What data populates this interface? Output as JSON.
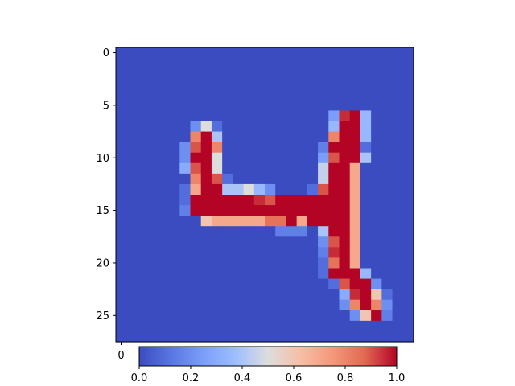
{
  "chart_data": {
    "type": "heatmap",
    "title": "",
    "colormap": "coolwarm",
    "colors": {
      "low": "#3b4cc0",
      "mid": "#dddddd",
      "high": "#b40426"
    },
    "y_ticks": [
      "0",
      "5",
      "10",
      "15",
      "20",
      "25"
    ],
    "x_ticks_visible": [
      "0"
    ],
    "colorbar_ticks": [
      "0.0",
      "0.2",
      "0.4",
      "0.6",
      "0.8",
      "1.0"
    ],
    "colorbar_range": [
      0,
      1
    ],
    "rows": 28,
    "cols": 28,
    "values": [
      [
        0,
        0,
        0,
        0,
        0,
        0,
        0,
        0,
        0,
        0,
        0,
        0,
        0,
        0,
        0,
        0,
        0,
        0,
        0,
        0,
        0,
        0,
        0,
        0,
        0,
        0,
        0,
        0
      ],
      [
        0,
        0,
        0,
        0,
        0,
        0,
        0,
        0,
        0,
        0,
        0,
        0,
        0,
        0,
        0,
        0,
        0,
        0,
        0,
        0,
        0,
        0,
        0,
        0,
        0,
        0,
        0,
        0
      ],
      [
        0,
        0,
        0,
        0,
        0,
        0,
        0,
        0,
        0,
        0,
        0,
        0,
        0,
        0,
        0,
        0,
        0,
        0,
        0,
        0,
        0,
        0,
        0,
        0,
        0,
        0,
        0,
        0
      ],
      [
        0,
        0,
        0,
        0,
        0,
        0,
        0,
        0,
        0,
        0,
        0,
        0,
        0,
        0,
        0,
        0,
        0,
        0,
        0,
        0,
        0,
        0,
        0,
        0,
        0,
        0,
        0,
        0
      ],
      [
        0,
        0,
        0,
        0,
        0,
        0,
        0,
        0,
        0,
        0,
        0,
        0,
        0,
        0,
        0,
        0,
        0,
        0,
        0,
        0,
        0,
        0,
        0,
        0,
        0,
        0,
        0,
        0
      ],
      [
        0,
        0,
        0,
        0,
        0,
        0,
        0,
        0,
        0,
        0,
        0,
        0,
        0,
        0,
        0,
        0,
        0,
        0,
        0,
        0,
        0,
        0,
        0,
        0,
        0,
        0,
        0,
        0
      ],
      [
        0,
        0,
        0,
        0,
        0,
        0,
        0,
        0,
        0,
        0,
        0,
        0,
        0,
        0,
        0,
        0,
        0,
        0,
        0,
        0,
        0.25,
        0.95,
        1,
        0.35,
        0,
        0,
        0,
        0
      ],
      [
        0,
        0,
        0,
        0,
        0,
        0,
        0,
        0.2,
        0.5,
        0.1,
        0,
        0,
        0,
        0,
        0,
        0,
        0,
        0,
        0,
        0,
        0.35,
        1,
        1,
        0.35,
        0,
        0,
        0,
        0
      ],
      [
        0,
        0,
        0,
        0,
        0,
        0,
        0,
        0.8,
        1,
        0.4,
        0,
        0,
        0,
        0,
        0,
        0,
        0,
        0,
        0,
        0,
        0.8,
        1,
        1,
        0.35,
        0,
        0,
        0,
        0
      ],
      [
        0,
        0,
        0,
        0,
        0,
        0,
        0.2,
        0.9,
        1,
        0.8,
        0,
        0,
        0,
        0,
        0,
        0,
        0,
        0,
        0,
        0.15,
        1,
        1,
        1,
        0.1,
        0,
        0,
        0,
        0
      ],
      [
        0,
        0,
        0,
        0,
        0,
        0,
        0.2,
        1,
        1,
        0.5,
        0,
        0,
        0,
        0,
        0,
        0,
        0,
        0,
        0,
        0.25,
        0.9,
        1,
        1,
        0.4,
        0,
        0,
        0,
        0
      ],
      [
        0,
        0,
        0,
        0,
        0,
        0,
        0.3,
        0.9,
        1,
        0.5,
        0,
        0,
        0,
        0,
        0,
        0,
        0,
        0,
        0,
        0.45,
        1,
        1,
        0.7,
        0,
        0,
        0,
        0,
        0
      ],
      [
        0,
        0,
        0,
        0,
        0,
        0,
        0,
        0.8,
        1,
        0.9,
        0.1,
        0,
        0,
        0,
        0,
        0,
        0,
        0,
        0,
        0.45,
        1,
        1,
        0.7,
        0,
        0,
        0,
        0,
        0
      ],
      [
        0,
        0,
        0,
        0,
        0,
        0,
        0.1,
        0.7,
        1,
        1,
        0.4,
        0.4,
        0.5,
        0.35,
        0.2,
        0,
        0,
        0,
        0.1,
        0.9,
        1,
        1,
        0.7,
        0,
        0,
        0,
        0,
        0
      ],
      [
        0,
        0,
        0,
        0,
        0,
        0,
        0.1,
        1,
        1,
        1,
        1,
        1,
        1,
        0.95,
        0.9,
        1,
        1,
        1,
        1,
        1,
        1,
        1,
        0.7,
        0,
        0,
        0,
        0,
        0
      ],
      [
        0,
        0,
        0,
        0,
        0,
        0,
        0.15,
        1,
        1,
        1,
        1,
        1,
        1,
        1,
        1,
        1,
        1,
        1,
        1,
        1,
        1,
        1,
        0.7,
        0,
        0,
        0,
        0,
        0
      ],
      [
        0,
        0,
        0,
        0,
        0,
        0,
        0,
        0,
        0.6,
        0.7,
        0.7,
        0.7,
        0.7,
        0.7,
        0.85,
        0.85,
        1,
        0.7,
        1,
        1,
        1,
        1,
        0.7,
        0,
        0,
        0,
        0,
        0
      ],
      [
        0,
        0,
        0,
        0,
        0,
        0,
        0,
        0,
        0,
        0,
        0,
        0,
        0,
        0,
        0,
        0.15,
        0.15,
        0.15,
        0,
        0.4,
        1,
        1,
        0.7,
        0,
        0,
        0,
        0,
        0
      ],
      [
        0,
        0,
        0,
        0,
        0,
        0,
        0,
        0,
        0,
        0,
        0,
        0,
        0,
        0,
        0,
        0,
        0,
        0,
        0,
        0.2,
        0.9,
        1,
        0.7,
        0,
        0,
        0,
        0,
        0
      ],
      [
        0,
        0,
        0,
        0,
        0,
        0,
        0,
        0,
        0,
        0,
        0,
        0,
        0,
        0,
        0,
        0,
        0,
        0,
        0,
        0.15,
        0.95,
        1,
        0.7,
        0,
        0,
        0,
        0,
        0
      ],
      [
        0,
        0,
        0,
        0,
        0,
        0,
        0,
        0,
        0,
        0,
        0,
        0,
        0,
        0,
        0,
        0,
        0,
        0,
        0,
        0.1,
        0.85,
        1,
        0.7,
        0,
        0,
        0,
        0,
        0
      ],
      [
        0,
        0,
        0,
        0,
        0,
        0,
        0,
        0,
        0,
        0,
        0,
        0,
        0,
        0,
        0,
        0,
        0,
        0,
        0,
        0.1,
        1,
        1,
        1,
        0.35,
        0,
        0,
        0,
        0
      ],
      [
        0,
        0,
        0,
        0,
        0,
        0,
        0,
        0,
        0,
        0,
        0,
        0,
        0,
        0,
        0,
        0,
        0,
        0,
        0,
        0,
        0.1,
        0.9,
        1,
        1,
        0.2,
        0,
        0,
        0
      ],
      [
        0,
        0,
        0,
        0,
        0,
        0,
        0,
        0,
        0,
        0,
        0,
        0,
        0,
        0,
        0,
        0,
        0,
        0,
        0,
        0,
        0,
        0.3,
        0.95,
        1,
        0.6,
        0.1,
        0,
        0
      ],
      [
        0,
        0,
        0,
        0,
        0,
        0,
        0,
        0,
        0,
        0,
        0,
        0,
        0,
        0,
        0,
        0,
        0,
        0,
        0,
        0,
        0,
        0.2,
        0.8,
        1,
        0.8,
        0.2,
        0,
        0
      ],
      [
        0,
        0,
        0,
        0,
        0,
        0,
        0,
        0,
        0,
        0,
        0,
        0,
        0,
        0,
        0,
        0,
        0,
        0,
        0,
        0,
        0,
        0,
        0.2,
        0.6,
        1,
        0.15,
        0,
        0
      ],
      [
        0,
        0,
        0,
        0,
        0,
        0,
        0,
        0,
        0,
        0,
        0,
        0,
        0,
        0,
        0,
        0,
        0,
        0,
        0,
        0,
        0,
        0,
        0,
        0,
        0,
        0,
        0,
        0
      ],
      [
        0,
        0,
        0,
        0,
        0,
        0,
        0,
        0,
        0,
        0,
        0,
        0,
        0,
        0,
        0,
        0,
        0,
        0,
        0,
        0,
        0,
        0,
        0,
        0,
        0,
        0,
        0,
        0
      ]
    ]
  }
}
